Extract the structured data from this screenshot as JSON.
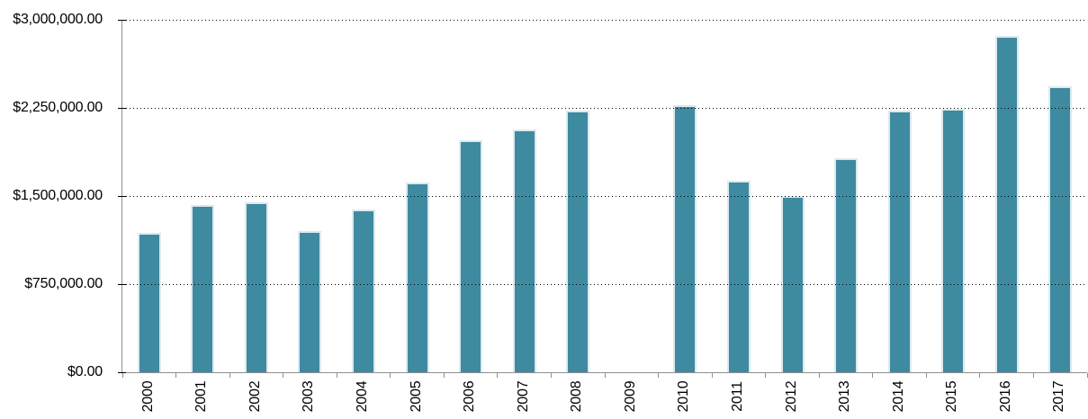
{
  "chart_data": {
    "type": "bar",
    "title": "",
    "xlabel": "",
    "ylabel": "",
    "legend": "none",
    "grid": "horizontal-dotted",
    "x_tick_label_rotation": -90,
    "categories": [
      "2000",
      "2001",
      "2002",
      "2003",
      "2004",
      "2005",
      "2006",
      "2007",
      "2008",
      "2009",
      "2010",
      "2011",
      "2012",
      "2013",
      "2014",
      "2015",
      "2016",
      "2017"
    ],
    "values": [
      1185000,
      1425000,
      1445000,
      1200000,
      1385000,
      1615000,
      1975000,
      2065000,
      2225000,
      0,
      2270000,
      1630000,
      1500000,
      1820000,
      2225000,
      2240000,
      2860000,
      2435000
    ],
    "ylim": [
      0,
      3000000
    ],
    "y_ticks": [
      3000000,
      2250000,
      1500000,
      750000,
      0
    ],
    "y_tick_labels": [
      "$3,000,000.00",
      "$2,250,000.00",
      "$1,500,000.00",
      "$750,000.00",
      "$0.00"
    ],
    "colors": {
      "bar_fill": "#3E8AA0",
      "bar_edge": "#DCE9EF",
      "axis_line": "#8F8F8F",
      "gridline": "#000000",
      "label_text": "#000000",
      "background": "#FFFFFF"
    }
  }
}
